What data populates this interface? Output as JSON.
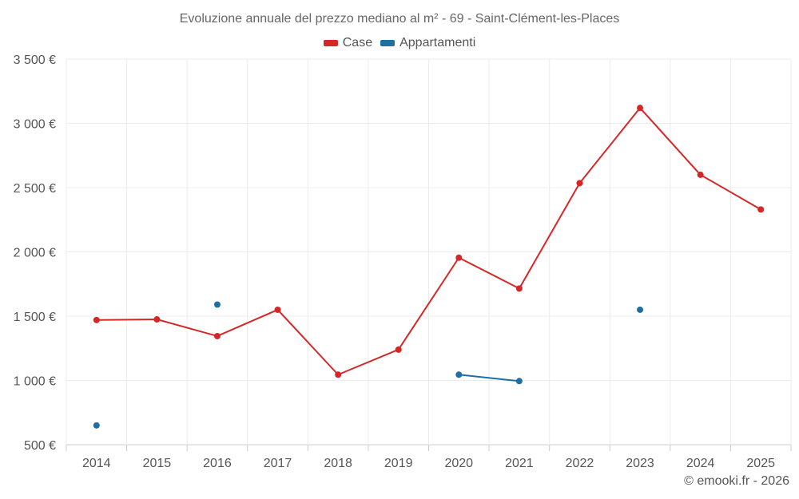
{
  "chart_data": {
    "type": "line",
    "title": "Evoluzione annuale del prezzo mediano al m² - 69 - Saint-Clément-les-Places",
    "categories": [
      "2014",
      "2015",
      "2016",
      "2017",
      "2018",
      "2019",
      "2020",
      "2021",
      "2022",
      "2023",
      "2024",
      "2025"
    ],
    "ylim": [
      500,
      3500
    ],
    "yticks": [
      500,
      1000,
      1500,
      2000,
      2500,
      3000,
      3500
    ],
    "ytick_labels": [
      "500 €",
      "1 000 €",
      "1 500 €",
      "2 000 €",
      "2 500 €",
      "3 000 €",
      "3 500 €"
    ],
    "grid": true,
    "legend_position": "top-center",
    "series": [
      {
        "name": "Case",
        "color": "#d62728",
        "values": [
          1470,
          1475,
          1345,
          1550,
          1045,
          1240,
          1955,
          1715,
          2535,
          3120,
          2600,
          2330
        ]
      },
      {
        "name": "Appartamenti",
        "color": "#1f6fa5",
        "values": [
          650,
          null,
          1590,
          null,
          null,
          null,
          1045,
          995,
          null,
          1550,
          null,
          null
        ]
      }
    ],
    "credit": "© emooki.fr - 2026"
  }
}
